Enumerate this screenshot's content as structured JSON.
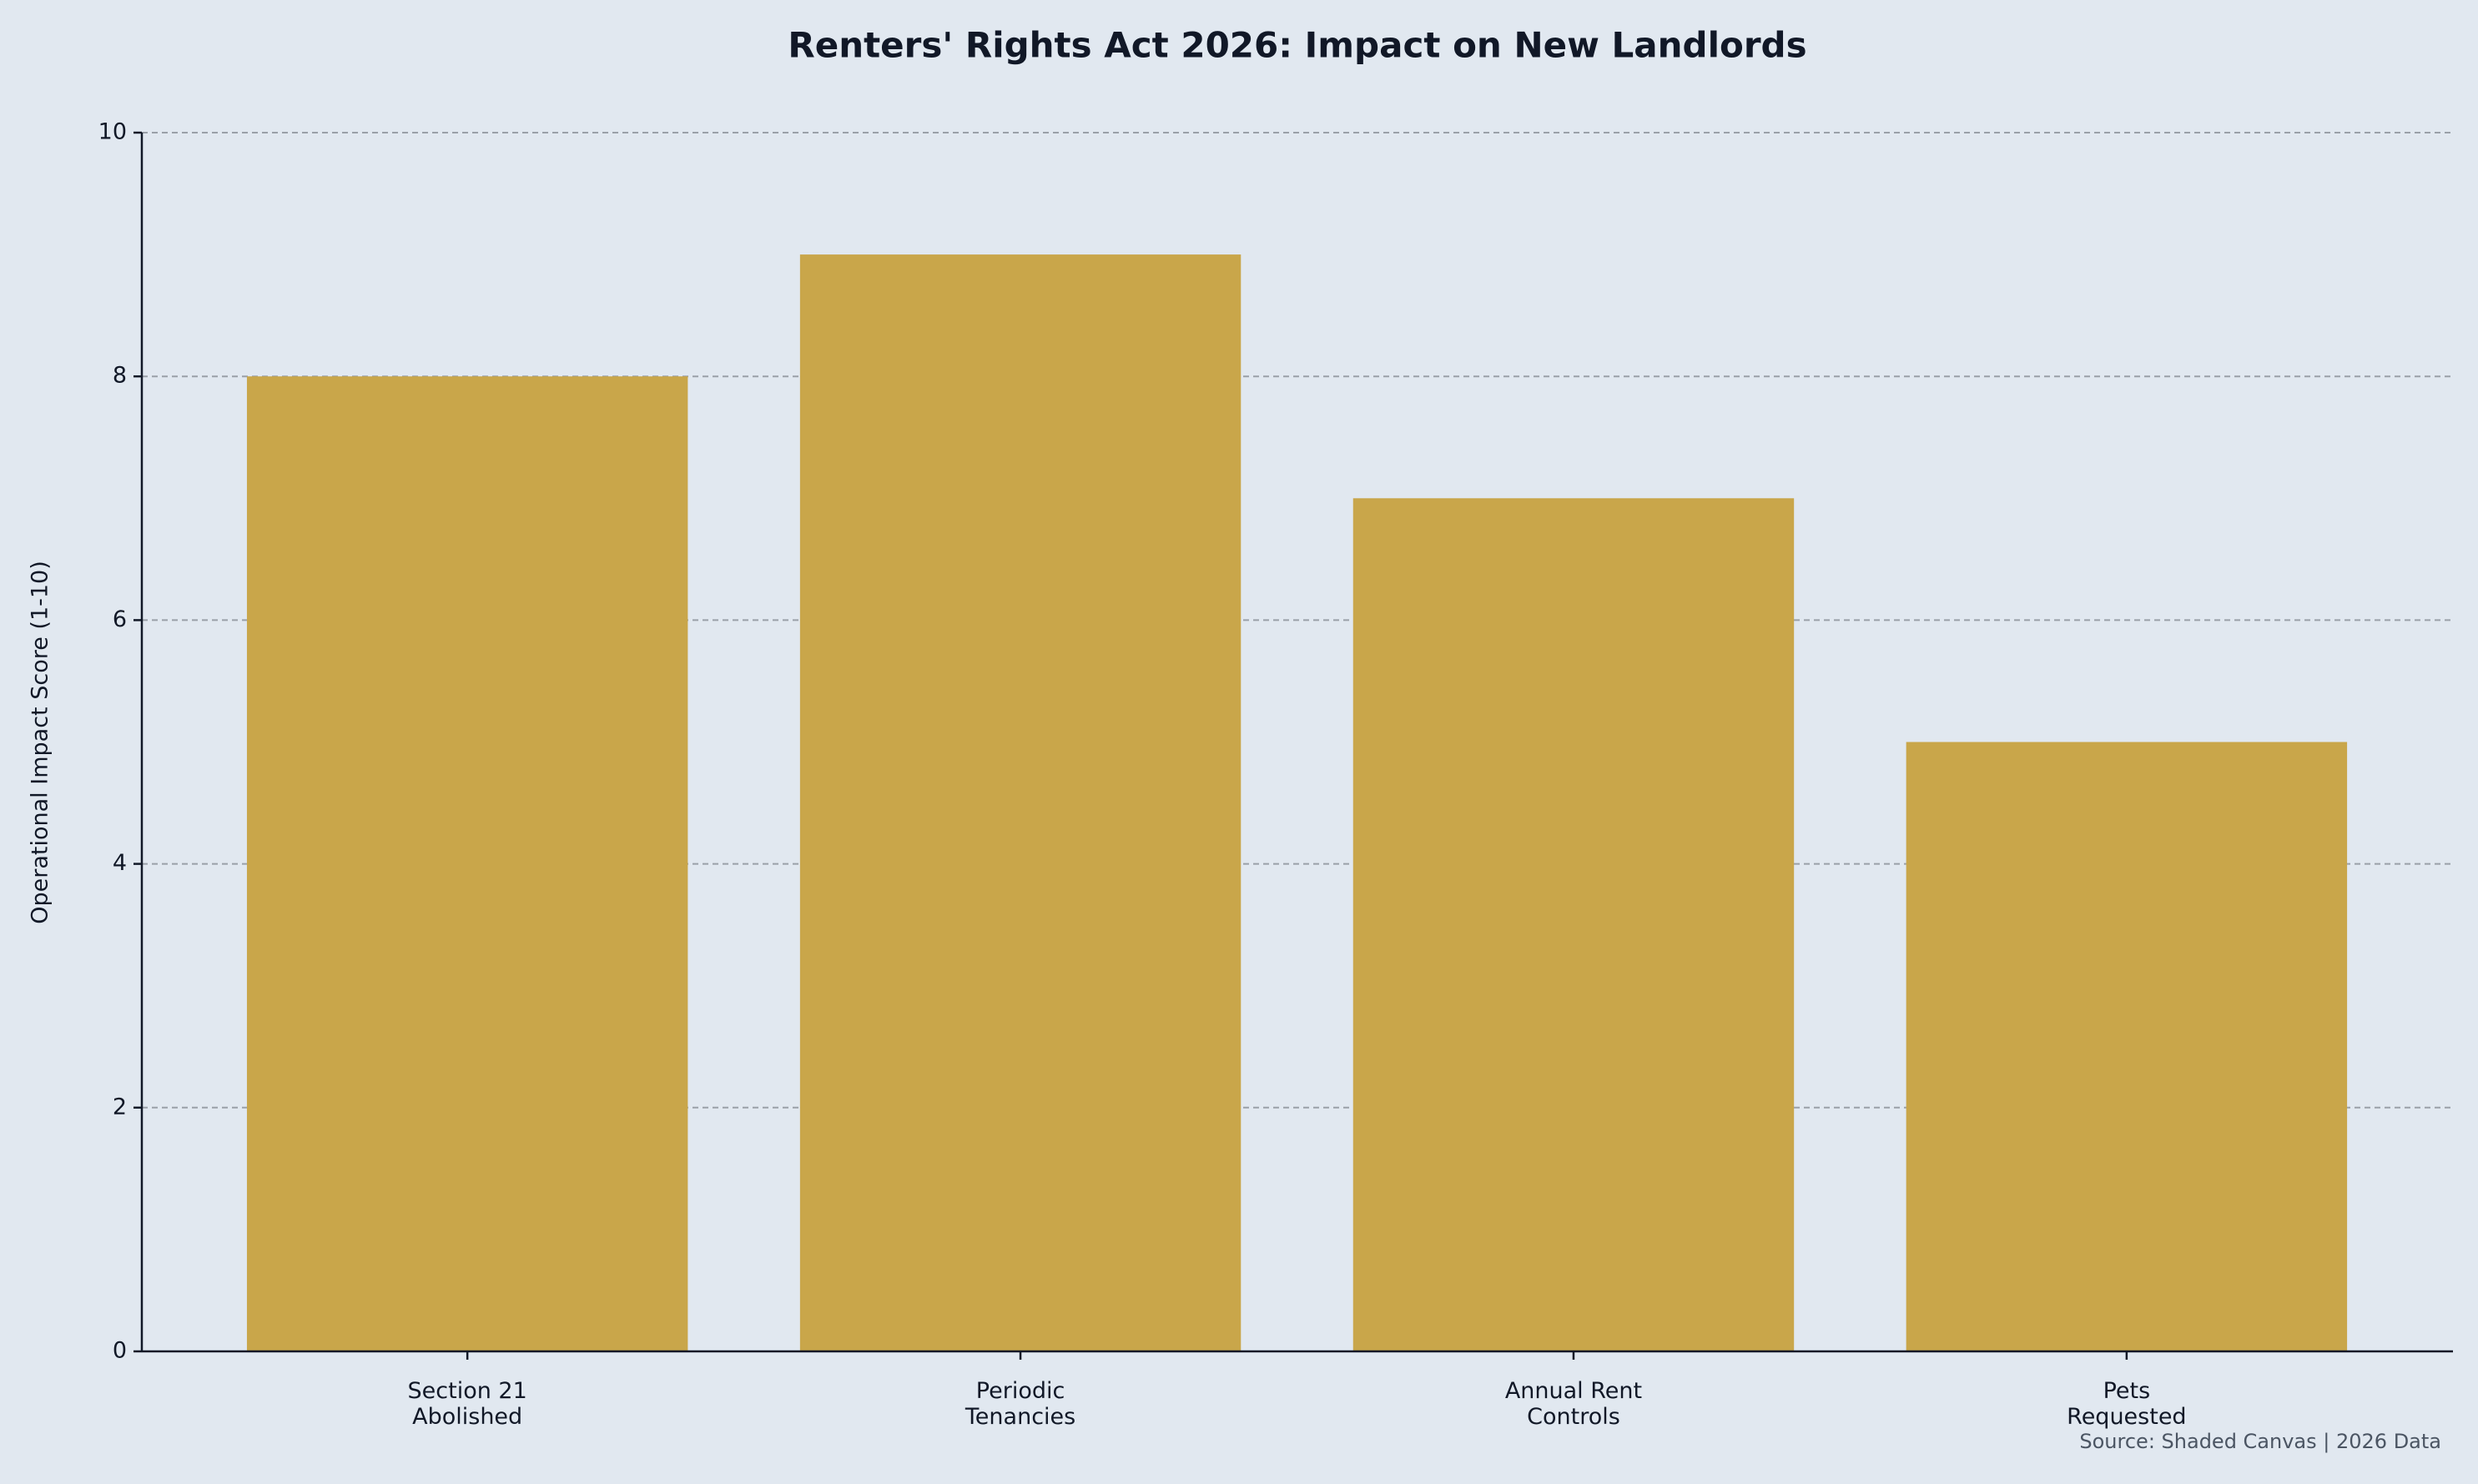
{
  "chart_data": {
    "type": "bar",
    "title": "Renters' Rights Act 2026: Impact on New Landlords",
    "y_label": "Operational Impact Score (1-10)",
    "categories": [
      "Section 21\nAbolished",
      "Periodic\nTenancies",
      "Annual Rent\nControls",
      "Pets\nRequested"
    ],
    "values": [
      8,
      9,
      7,
      5
    ],
    "color": "#c9a64a",
    "ylim": [
      0,
      10
    ],
    "yticks": [
      0,
      2,
      4,
      6,
      8,
      10
    ],
    "grid": true,
    "source": "Source: Shaded Canvas | 2026 Data"
  }
}
